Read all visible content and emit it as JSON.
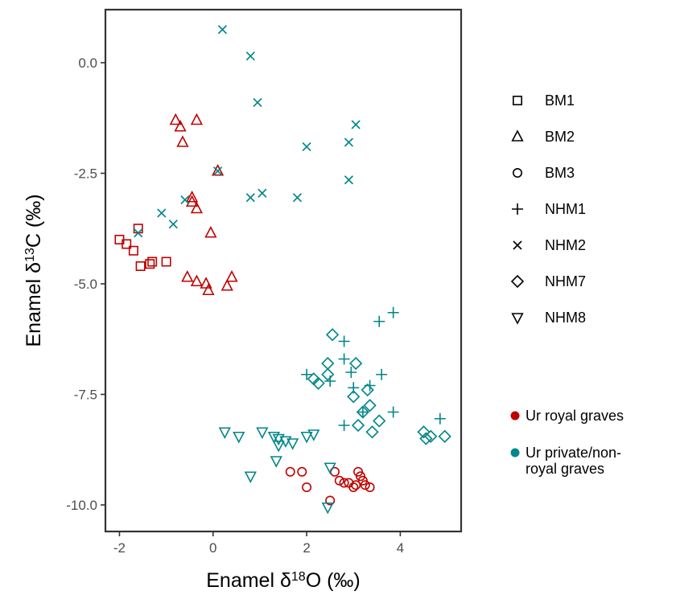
{
  "chart_data": {
    "type": "scatter",
    "xlabel": {
      "pre": "Enamel δ",
      "sup": "18",
      "post": "O (‰)"
    },
    "ylabel": {
      "pre": "Enamel δ",
      "sup": "13",
      "post": "C (‰)"
    },
    "xlim": [
      -2.3,
      5.3
    ],
    "ylim": [
      -10.6,
      1.2
    ],
    "xticks": [
      -2,
      0,
      2,
      4
    ],
    "xtick_labels": [
      "-2",
      "0",
      "2",
      "4"
    ],
    "yticks": [
      0,
      -2.5,
      -5,
      -7.5,
      -10
    ],
    "ytick_labels": [
      "0.0",
      "-2.5",
      "-5.0",
      "-7.5",
      "-10.0"
    ],
    "grid": false,
    "legend_position": "right",
    "groups": [
      {
        "name": "Ur royal graves",
        "color": "#c00000"
      },
      {
        "name": "Ur private/non-\nroyal graves",
        "color": "#00868b"
      }
    ],
    "series": [
      {
        "name": "BM1",
        "shape": "square",
        "group": 0,
        "points": [
          [
            -2.0,
            -4.0
          ],
          [
            -1.85,
            -4.1
          ],
          [
            -1.7,
            -4.25
          ],
          [
            -1.6,
            -3.75
          ],
          [
            -1.55,
            -4.6
          ],
          [
            -1.35,
            -4.55
          ],
          [
            -1.3,
            -4.5
          ],
          [
            -1.0,
            -4.5
          ]
        ]
      },
      {
        "name": "BM2",
        "shape": "triangle-up",
        "group": 0,
        "points": [
          [
            -0.8,
            -1.3
          ],
          [
            -0.7,
            -1.45
          ],
          [
            -0.65,
            -1.8
          ],
          [
            -0.35,
            -1.3
          ],
          [
            -0.45,
            -3.05
          ],
          [
            -0.35,
            -3.3
          ],
          [
            -0.45,
            -3.15
          ],
          [
            -0.05,
            -3.85
          ],
          [
            0.1,
            -2.45
          ],
          [
            -0.55,
            -4.85
          ],
          [
            -0.35,
            -4.95
          ],
          [
            -0.15,
            -5.0
          ],
          [
            -0.1,
            -5.15
          ],
          [
            0.3,
            -5.05
          ],
          [
            0.4,
            -4.85
          ]
        ]
      },
      {
        "name": "BM3",
        "shape": "circle",
        "group": 0,
        "points": [
          [
            1.65,
            -9.25
          ],
          [
            1.9,
            -9.25
          ],
          [
            2.0,
            -9.6
          ],
          [
            2.5,
            -9.9
          ],
          [
            2.6,
            -9.25
          ],
          [
            2.7,
            -9.45
          ],
          [
            2.8,
            -9.5
          ],
          [
            2.9,
            -9.5
          ],
          [
            3.0,
            -9.6
          ],
          [
            3.05,
            -9.55
          ],
          [
            3.1,
            -9.25
          ],
          [
            3.15,
            -9.35
          ],
          [
            3.2,
            -9.45
          ],
          [
            3.25,
            -9.55
          ],
          [
            3.35,
            -9.6
          ]
        ]
      },
      {
        "name": "NHM1",
        "shape": "plus",
        "group": 1,
        "points": [
          [
            2.0,
            -7.05
          ],
          [
            2.5,
            -7.2
          ],
          [
            2.8,
            -6.3
          ],
          [
            2.8,
            -6.7
          ],
          [
            2.95,
            -7.0
          ],
          [
            3.0,
            -7.35
          ],
          [
            2.8,
            -8.2
          ],
          [
            3.2,
            -7.9
          ],
          [
            3.35,
            -7.3
          ],
          [
            3.6,
            -7.05
          ],
          [
            3.55,
            -5.85
          ],
          [
            3.85,
            -5.65
          ],
          [
            3.85,
            -7.9
          ],
          [
            4.85,
            -8.05
          ]
        ]
      },
      {
        "name": "NHM2",
        "shape": "x",
        "group": 1,
        "points": [
          [
            0.2,
            0.75
          ],
          [
            0.8,
            0.15
          ],
          [
            0.95,
            -0.9
          ],
          [
            3.05,
            -1.4
          ],
          [
            2.9,
            -1.8
          ],
          [
            2.0,
            -1.9
          ],
          [
            0.1,
            -2.45
          ],
          [
            2.9,
            -2.65
          ],
          [
            -0.6,
            -3.1
          ],
          [
            0.8,
            -3.05
          ],
          [
            1.05,
            -2.95
          ],
          [
            1.8,
            -3.05
          ],
          [
            -1.1,
            -3.4
          ],
          [
            -0.85,
            -3.65
          ],
          [
            -1.6,
            -3.85
          ]
        ]
      },
      {
        "name": "NHM7",
        "shape": "diamond",
        "group": 1,
        "points": [
          [
            2.55,
            -6.15
          ],
          [
            2.45,
            -6.8
          ],
          [
            3.05,
            -6.8
          ],
          [
            2.45,
            -7.05
          ],
          [
            2.15,
            -7.15
          ],
          [
            2.25,
            -7.25
          ],
          [
            3.0,
            -7.55
          ],
          [
            3.3,
            -7.4
          ],
          [
            3.2,
            -7.9
          ],
          [
            3.35,
            -7.75
          ],
          [
            3.1,
            -8.2
          ],
          [
            3.55,
            -8.1
          ],
          [
            3.4,
            -8.35
          ],
          [
            4.5,
            -8.35
          ],
          [
            4.55,
            -8.5
          ],
          [
            4.65,
            -8.45
          ],
          [
            4.95,
            -8.45
          ]
        ]
      },
      {
        "name": "NHM8",
        "shape": "triangle-down",
        "group": 1,
        "points": [
          [
            0.25,
            -8.35
          ],
          [
            0.55,
            -8.45
          ],
          [
            1.05,
            -8.35
          ],
          [
            1.3,
            -8.45
          ],
          [
            1.4,
            -8.5
          ],
          [
            1.4,
            -8.65
          ],
          [
            1.55,
            -8.55
          ],
          [
            1.7,
            -8.6
          ],
          [
            2.0,
            -8.45
          ],
          [
            2.15,
            -8.4
          ],
          [
            0.8,
            -9.35
          ],
          [
            1.35,
            -9.0
          ],
          [
            2.5,
            -9.15
          ],
          [
            2.45,
            -10.05
          ]
        ]
      }
    ]
  }
}
